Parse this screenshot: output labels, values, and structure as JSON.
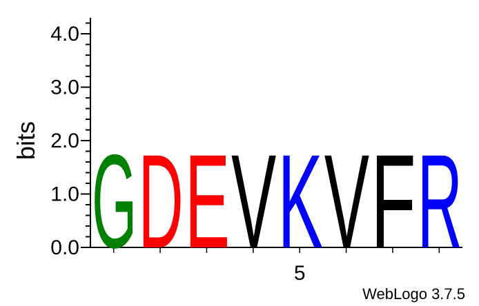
{
  "chart_data": {
    "type": "sequence-logo",
    "ylabel": "bits",
    "ylim": [
      0,
      4.3
    ],
    "yticks": [
      "0.0",
      "1.0",
      "2.0",
      "3.0",
      "4.0"
    ],
    "x_tick_label": "5",
    "x_tick_label_position": 5,
    "positions": [
      1,
      2,
      3,
      4,
      5,
      6,
      7,
      8
    ],
    "letters": [
      {
        "position": 1,
        "letter": "G",
        "bits": 1.79,
        "color": "#008000"
      },
      {
        "position": 2,
        "letter": "D",
        "bits": 1.79,
        "color": "#ff0000"
      },
      {
        "position": 3,
        "letter": "E",
        "bits": 1.79,
        "color": "#ff0000"
      },
      {
        "position": 4,
        "letter": "V",
        "bits": 1.79,
        "color": "#000000"
      },
      {
        "position": 5,
        "letter": "K",
        "bits": 1.79,
        "color": "#0000ff"
      },
      {
        "position": 6,
        "letter": "V",
        "bits": 1.79,
        "color": "#000000"
      },
      {
        "position": 7,
        "letter": "F",
        "bits": 1.79,
        "color": "#000000"
      },
      {
        "position": 8,
        "letter": "R",
        "bits": 1.79,
        "color": "#0000ff"
      }
    ]
  },
  "credit": "WebLogo 3.7.5"
}
